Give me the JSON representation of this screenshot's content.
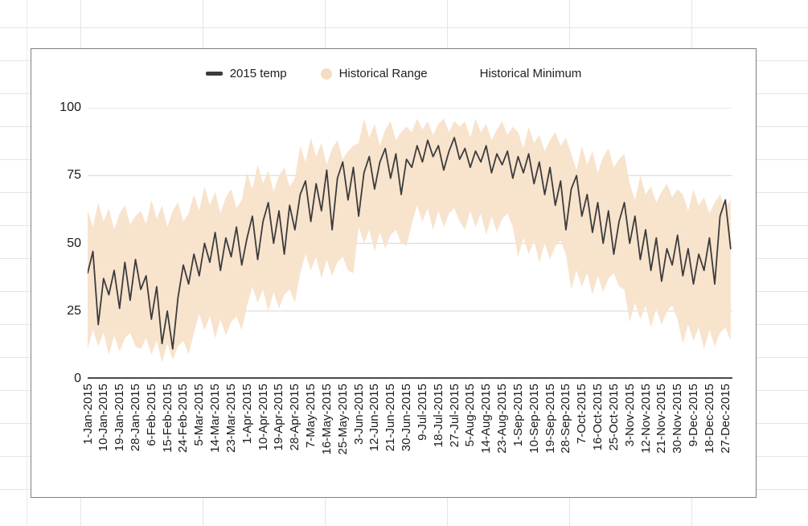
{
  "chart_data": {
    "type": "line",
    "title": "",
    "legend_position": "top",
    "grid": true,
    "legend": [
      {
        "label": "2015 temp",
        "marker": "dash",
        "color": "#3c3c3c"
      },
      {
        "label": "Historical Range",
        "marker": "circle",
        "color": "#f6dcc1"
      },
      {
        "label": "Historical Minimum",
        "marker": "none",
        "color": "#ffffff"
      }
    ],
    "y_axis": {
      "ticks": [
        0,
        25,
        50,
        75,
        100
      ],
      "range": [
        0,
        100
      ]
    },
    "x_axis": {
      "start": "1-Jan-2015",
      "end": "31-Dec-2015",
      "tick_interval_days": 9,
      "tick_labels": [
        "1-Jan-2015",
        "10-Jan-2015",
        "19-Jan-2015",
        "28-Jan-2015",
        "6-Feb-2015",
        "15-Feb-2015",
        "24-Feb-2015",
        "5-Mar-2015",
        "14-Mar-2015",
        "23-Mar-2015",
        "1-Apr-2015",
        "10-Apr-2015",
        "19-Apr-2015",
        "28-Apr-2015",
        "7-May-2015",
        "16-May-2015",
        "25-May-2015",
        "3-Jun-2015",
        "12-Jun-2015",
        "21-Jun-2015",
        "30-Jun-2015",
        "9-Jul-2015",
        "18-Jul-2015",
        "27-Jul-2015",
        "5-Aug-2015",
        "14-Aug-2015",
        "23-Aug-2015",
        "1-Sep-2015",
        "10-Sep-2015",
        "19-Sep-2015",
        "28-Sep-2015",
        "7-Oct-2015",
        "16-Oct-2015",
        "25-Oct-2015",
        "3-Nov-2015",
        "12-Nov-2015",
        "21-Nov-2015",
        "30-Nov-2015",
        "9-Dec-2015",
        "18-Dec-2015",
        "27-Dec-2015"
      ]
    },
    "sample_interval_days": 3,
    "series": [
      {
        "name": "2015 temp",
        "type": "line",
        "color": "#3c3c3c",
        "values": [
          39,
          47,
          20,
          37,
          31,
          40,
          26,
          43,
          29,
          44,
          33,
          38,
          22,
          34,
          13,
          25,
          11,
          30,
          42,
          35,
          46,
          38,
          50,
          43,
          54,
          40,
          52,
          45,
          56,
          42,
          52,
          60,
          44,
          58,
          65,
          50,
          62,
          46,
          64,
          55,
          68,
          73,
          58,
          72,
          62,
          77,
          55,
          74,
          80,
          66,
          78,
          60,
          76,
          82,
          70,
          80,
          85,
          74,
          83,
          68,
          81,
          78,
          86,
          80,
          88,
          82,
          86,
          77,
          84,
          89,
          81,
          85,
          78,
          84,
          80,
          86,
          76,
          83,
          79,
          84,
          74,
          82,
          76,
          83,
          72,
          80,
          68,
          78,
          64,
          73,
          55,
          70,
          75,
          60,
          68,
          54,
          65,
          50,
          62,
          46,
          58,
          65,
          50,
          60,
          44,
          55,
          40,
          52,
          36,
          48,
          42,
          53,
          38,
          48,
          35,
          46,
          40,
          52,
          35,
          60,
          66,
          48
        ]
      },
      {
        "name": "Historical Range",
        "type": "band",
        "color": "#f8e3cd",
        "lower": [
          11,
          18,
          12,
          17,
          9,
          16,
          10,
          15,
          17,
          12,
          11,
          15,
          9,
          14,
          6,
          13,
          7,
          12,
          14,
          9,
          17,
          24,
          18,
          23,
          15,
          22,
          16,
          21,
          23,
          18,
          27,
          34,
          28,
          33,
          25,
          32,
          26,
          31,
          33,
          28,
          39,
          46,
          40,
          45,
          37,
          44,
          38,
          43,
          45,
          40,
          39,
          56,
          50,
          55,
          47,
          54,
          48,
          53,
          55,
          50,
          49,
          57,
          64,
          58,
          63,
          55,
          62,
          56,
          61,
          63,
          58,
          55,
          62,
          56,
          61,
          53,
          60,
          54,
          59,
          61,
          56,
          45,
          52,
          46,
          51,
          43,
          50,
          44,
          49,
          51,
          46,
          33,
          40,
          34,
          39,
          31,
          38,
          32,
          37,
          39,
          34,
          33,
          21,
          28,
          22,
          27,
          19,
          26,
          20,
          25,
          27,
          22,
          13,
          20,
          14,
          19,
          11,
          18,
          12,
          17,
          19,
          14
        ],
        "upper": [
          62,
          56,
          65,
          58,
          63,
          55,
          61,
          64,
          57,
          60,
          62,
          57,
          66,
          59,
          64,
          56,
          62,
          65,
          58,
          61,
          68,
          62,
          71,
          64,
          69,
          61,
          67,
          70,
          63,
          66,
          76,
          70,
          79,
          72,
          77,
          69,
          75,
          78,
          71,
          74,
          86,
          80,
          89,
          82,
          87,
          79,
          85,
          88,
          81,
          84,
          86,
          87,
          96,
          89,
          94,
          86,
          92,
          95,
          88,
          91,
          93,
          91,
          96,
          92,
          95,
          90,
          94,
          96,
          91,
          95,
          93,
          95,
          89,
          96,
          91,
          94,
          88,
          92,
          95,
          90,
          93,
          91,
          85,
          93,
          87,
          90,
          84,
          88,
          91,
          86,
          89,
          83,
          77,
          86,
          79,
          84,
          76,
          82,
          85,
          78,
          81,
          83,
          72,
          66,
          75,
          68,
          71,
          65,
          69,
          72,
          67,
          70,
          68,
          62,
          70,
          64,
          67,
          61,
          65,
          68,
          63,
          66
        ]
      },
      {
        "name": "Historical Minimum",
        "type": "line",
        "color": "#ffffff",
        "values": []
      }
    ],
    "colors": {
      "line": "#3c3c3c",
      "band_fill": "#f8e3cd",
      "gridline": "#d6d6d6",
      "axis_line": "#4a4a4a",
      "label_text": "#1b1b1b",
      "sheet_gridline": "#e5e5e5",
      "card_border": "#7e7e7e"
    }
  }
}
